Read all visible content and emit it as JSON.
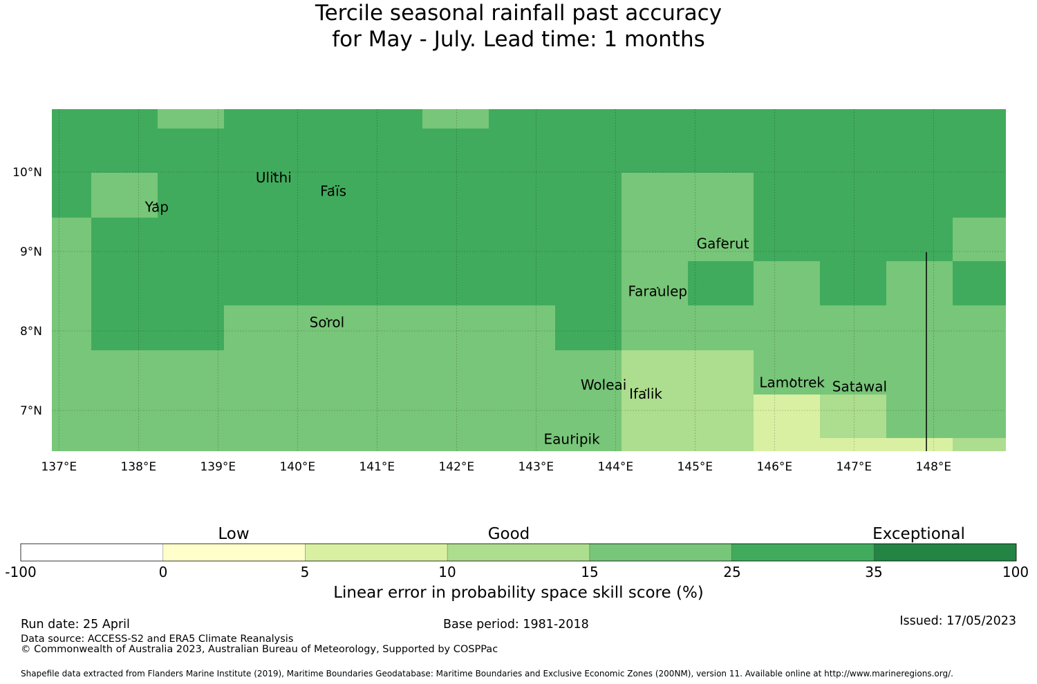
{
  "title": {
    "line1": "Tercile seasonal rainfall past accuracy",
    "line2": "for May - July. Lead time: 1 months"
  },
  "map": {
    "lon_ticks": [
      "137°E",
      "138°E",
      "139°E",
      "140°E",
      "141°E",
      "142°E",
      "143°E",
      "144°E",
      "145°E",
      "146°E",
      "147°E",
      "148°E"
    ],
    "lat_ticks": [
      "10°N",
      "9°N",
      "8°N",
      "7°N"
    ],
    "places": [
      {
        "name": "Ulithi",
        "lon": 139.7,
        "lat": 9.87
      },
      {
        "name": "Faïs",
        "lon": 140.45,
        "lat": 9.7
      },
      {
        "name": "Yap",
        "lon": 138.23,
        "lat": 9.5
      },
      {
        "name": "Gaferut",
        "lon": 145.35,
        "lat": 9.04
      },
      {
        "name": "Faraulep",
        "lon": 144.53,
        "lat": 8.44
      },
      {
        "name": "Sorol",
        "lon": 140.37,
        "lat": 8.05
      },
      {
        "name": "Woleai",
        "lon": 143.85,
        "lat": 7.26
      },
      {
        "name": "Ifalik",
        "lon": 144.38,
        "lat": 7.15
      },
      {
        "name": "Lamotrek",
        "lon": 146.22,
        "lat": 7.29
      },
      {
        "name": "Satawal",
        "lon": 147.07,
        "lat": 7.24
      },
      {
        "name": "Eauripik",
        "lon": 143.45,
        "lat": 6.58
      }
    ],
    "colors": {
      "c5": "#d9f0a3",
      "c10": "#addd8e",
      "c15": "#78c679",
      "c25": "#41ab5d"
    }
  },
  "colorbar": {
    "categories": [
      "Low",
      "Good",
      "Exceptional"
    ],
    "ticks": [
      "-100",
      "0",
      "5",
      "10",
      "15",
      "25",
      "35",
      "100"
    ],
    "colors": [
      "#ffffff",
      "#ffffcc",
      "#d9f0a3",
      "#addd8e",
      "#78c679",
      "#41ab5d",
      "#238443"
    ],
    "title": "Linear error in probability space skill score (%)"
  },
  "footer": {
    "run_date": "Run date: 25 April",
    "base_period": "Base period: 1981-2018",
    "issued": "Issued: 17/05/2023",
    "data_source": "Data source: ACCESS-S2 and ERA5 Climate Reanalysis",
    "copyright": "© Commonwealth of Australia 2023, Australian Bureau of Meteorology, Supported by COSPPac",
    "shapefile": "Shapefile data extracted from Flanders Marine Institute (2019), Maritime Boundaries Geodatabase: Maritime Boundaries and Exclusive Economic Zones (200NM), version 11. Available online at http://www.marineregions.org/."
  }
}
